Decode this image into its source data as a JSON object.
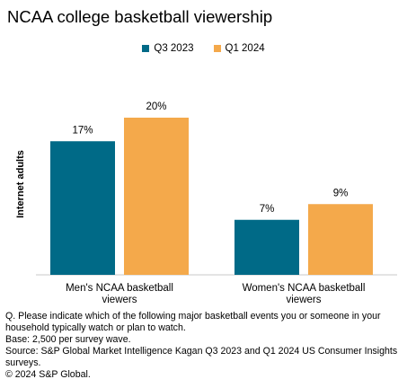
{
  "chart_data": {
    "type": "bar",
    "title": "NCAA college basketball viewership",
    "ylabel": "Internet adults",
    "categories": [
      "Men's NCAA basketball viewers",
      "Women's NCAA basketball viewers"
    ],
    "category_lines": [
      [
        "Men's NCAA basketball",
        "viewers"
      ],
      [
        "Women's NCAA basketball",
        "viewers"
      ]
    ],
    "series": [
      {
        "name": "Q3 2023",
        "color": "#006a87",
        "values": [
          17,
          7
        ],
        "labels": [
          "17%",
          "7%"
        ]
      },
      {
        "name": "Q1 2024",
        "color": "#f4a94b",
        "values": [
          20,
          9
        ],
        "labels": [
          "20%",
          "9%"
        ]
      }
    ],
    "ylim": [
      0,
      22
    ],
    "legend_position": "top-center",
    "grid": false
  },
  "notes": [
    "Q. Please indicate which of the following major basketball events you or someone in your household typically watch or plan to watch.",
    "Base: 2,500 per survey wave.",
    "Source: S&P Global Market Intelligence Kagan Q3 2023 and Q1 2024 US Consumer Insights surveys.",
    "© 2024 S&P Global."
  ]
}
